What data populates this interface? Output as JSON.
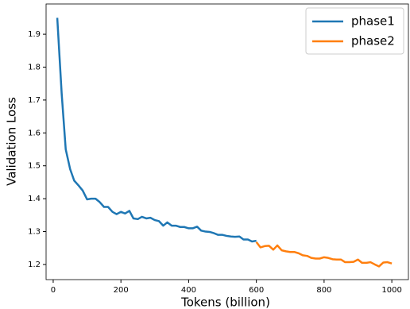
{
  "chart_data": {
    "type": "line",
    "x_label": "Tokens (billion)",
    "y_label": "Validation Loss",
    "xlim": [
      -21,
      1049
    ],
    "ylim": [
      1.154,
      1.992
    ],
    "xticks": [
      0,
      200,
      400,
      600,
      800,
      1000
    ],
    "yticks": [
      1.2,
      1.3,
      1.4,
      1.5,
      1.6,
      1.7,
      1.8,
      1.9
    ],
    "legend": "upper right",
    "series": [
      {
        "name": "phase1",
        "color": "#1f77b4",
        "x": [
          12,
          25,
          37,
          50,
          62,
          75,
          87,
          100,
          112,
          125,
          137,
          150,
          162,
          175,
          187,
          200,
          212,
          225,
          237,
          250,
          262,
          275,
          287,
          300,
          312,
          325,
          337,
          350,
          362,
          375,
          387,
          400,
          412,
          425,
          437,
          450,
          462,
          475,
          487,
          500,
          512,
          525,
          537,
          550,
          562,
          575,
          587,
          600
        ],
        "values": [
          1.95,
          1.72,
          1.55,
          1.49,
          1.455,
          1.44,
          1.425,
          1.398,
          1.4,
          1.4,
          1.39,
          1.375,
          1.375,
          1.36,
          1.353,
          1.36,
          1.355,
          1.363,
          1.34,
          1.338,
          1.345,
          1.34,
          1.342,
          1.335,
          1.332,
          1.318,
          1.328,
          1.318,
          1.318,
          1.314,
          1.314,
          1.31,
          1.31,
          1.315,
          1.303,
          1.3,
          1.299,
          1.295,
          1.29,
          1.29,
          1.287,
          1.285,
          1.284,
          1.285,
          1.276,
          1.276,
          1.27,
          1.272
        ]
      },
      {
        "name": "phase2",
        "color": "#ff7f0e",
        "x": [
          600,
          612,
          625,
          637,
          650,
          662,
          675,
          687,
          700,
          712,
          725,
          737,
          750,
          762,
          775,
          787,
          800,
          812,
          825,
          837,
          850,
          862,
          875,
          887,
          900,
          912,
          925,
          937,
          950,
          962,
          975,
          987,
          1000
        ],
        "values": [
          1.268,
          1.252,
          1.256,
          1.257,
          1.245,
          1.258,
          1.243,
          1.24,
          1.238,
          1.238,
          1.234,
          1.228,
          1.226,
          1.22,
          1.218,
          1.218,
          1.222,
          1.22,
          1.216,
          1.215,
          1.215,
          1.207,
          1.207,
          1.208,
          1.215,
          1.205,
          1.205,
          1.207,
          1.2,
          1.194,
          1.206,
          1.207,
          1.203
        ]
      }
    ]
  }
}
